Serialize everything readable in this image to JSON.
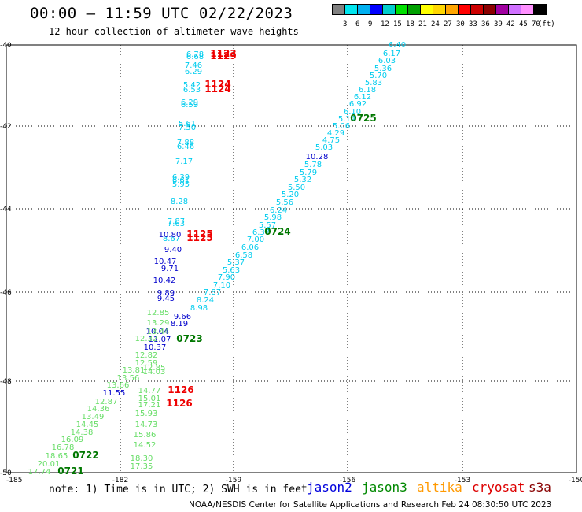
{
  "header": {
    "title": "00:00 – 11:59 UTC 02/22/2023",
    "subtitle": "12 hour collection of altimeter wave heights"
  },
  "colorbar": {
    "colors": [
      "#808080",
      "#00e5ee",
      "#00b0f0",
      "#0000ff",
      "#00cdcd",
      "#00e000",
      "#00a000",
      "#ffff00",
      "#ffd700",
      "#ffa500",
      "#ff0000",
      "#cc0000",
      "#8b0000",
      "#a000a0",
      "#d070ff",
      "#ff90ff",
      "#000000"
    ],
    "labels": [
      "3",
      "6",
      "9",
      "12",
      "15",
      "18",
      "21",
      "24",
      "27",
      "30",
      "33",
      "36",
      "39",
      "42",
      "45",
      "70",
      "(ft)"
    ]
  },
  "axes": {
    "x_ticks": [
      "-185",
      "-182",
      "-159",
      "-156",
      "-153",
      "-150"
    ],
    "y_ticks": [
      "-40",
      "-42",
      "-44",
      "-46",
      "-48",
      "-50"
    ]
  },
  "tracks": [
    {
      "color": "#00ccee",
      "points": [
        [
          "6.40",
          505,
          56
        ],
        [
          "6.17",
          498,
          67
        ],
        [
          "6.03",
          492,
          76
        ],
        [
          "5.36",
          487,
          86
        ],
        [
          "5.70",
          481,
          95
        ],
        [
          "5.83",
          475,
          104
        ],
        [
          "6.18",
          467,
          113
        ],
        [
          "6.12",
          461,
          122
        ],
        [
          "6.92",
          455,
          131
        ],
        [
          "6.10",
          448,
          141
        ],
        [
          "5.14",
          441,
          150
        ],
        [
          "5.06",
          434,
          159
        ],
        [
          "4.29",
          427,
          168
        ],
        [
          "4.75",
          421,
          177
        ],
        [
          "5.03",
          412,
          186
        ],
        [
          "5.78",
          398,
          208
        ],
        [
          "5.79",
          392,
          218
        ],
        [
          "5.32",
          385,
          227
        ],
        [
          "5.50",
          377,
          237
        ],
        [
          "5.20",
          369,
          246
        ],
        [
          "5.56",
          362,
          256
        ],
        [
          "6.24",
          354,
          266
        ],
        [
          "5.98",
          347,
          275
        ],
        [
          "5.57",
          340,
          285
        ],
        [
          "6.37",
          332,
          294
        ],
        [
          "7.00",
          325,
          303
        ],
        [
          "6.06",
          318,
          313
        ],
        [
          "6.58",
          310,
          323
        ],
        [
          "5.37",
          300,
          332
        ],
        [
          "5.63",
          294,
          342
        ],
        [
          "7.90",
          288,
          351
        ],
        [
          "7.10",
          282,
          361
        ],
        [
          "7.87",
          270,
          370
        ],
        [
          "8.24",
          261,
          380
        ],
        [
          "8.98",
          253,
          390
        ],
        [
          "6.78",
          248,
          68
        ],
        [
          "6.68",
          248,
          71
        ],
        [
          "7.46",
          246,
          82
        ],
        [
          "6.29",
          246,
          90
        ],
        [
          "5.42",
          244,
          107
        ],
        [
          "6.53",
          244,
          113
        ],
        [
          "6.29",
          241,
          129
        ],
        [
          "6.59",
          241,
          132
        ],
        [
          "5.61",
          238,
          156
        ],
        [
          "7.50",
          238,
          161
        ],
        [
          "7.88",
          236,
          180
        ],
        [
          "6.46",
          236,
          185
        ],
        [
          "7.17",
          234,
          204
        ],
        [
          "6.39",
          230,
          224
        ],
        [
          "6.61",
          230,
          228
        ],
        [
          "5.95",
          230,
          233
        ],
        [
          "8.28",
          228,
          255
        ],
        [
          "7.87",
          224,
          280
        ],
        [
          "7.63",
          224,
          283
        ],
        [
          "8.67",
          218,
          302
        ]
      ]
    },
    {
      "color": "#0000cc",
      "points": [
        [
          "10.28",
          403,
          198
        ],
        [
          "10.80",
          216,
          297
        ],
        [
          "9.40",
          220,
          316
        ],
        [
          "10.47",
          210,
          331
        ],
        [
          "9.71",
          216,
          340
        ],
        [
          "10.42",
          209,
          355
        ],
        [
          "9.89",
          211,
          371
        ],
        [
          "9.45",
          211,
          378
        ],
        [
          "9.66",
          232,
          401
        ],
        [
          "8.19",
          228,
          410
        ],
        [
          "10.04",
          200,
          420
        ],
        [
          "11.07",
          203,
          430
        ],
        [
          "10.37",
          197,
          440
        ],
        [
          "11.55",
          145,
          498
        ]
      ]
    },
    {
      "color": "#66dd66",
      "points": [
        [
          "12.85",
          201,
          396
        ],
        [
          "13.29",
          201,
          409
        ],
        [
          "13.44",
          201,
          420
        ],
        [
          "12.32",
          186,
          429
        ],
        [
          "12.82",
          186,
          450
        ],
        [
          "12.59",
          186,
          460
        ],
        [
          "13.81",
          170,
          469
        ],
        [
          "12.85",
          196,
          466
        ],
        [
          "14.03",
          196,
          471
        ],
        [
          "13.56",
          163,
          479
        ],
        [
          "13.66",
          150,
          488
        ],
        [
          "12.87",
          135,
          509
        ],
        [
          "14.36",
          125,
          518
        ],
        [
          "13.49",
          118,
          528
        ],
        [
          "14.45",
          111,
          538
        ],
        [
          "14.38",
          104,
          548
        ],
        [
          "16.09",
          92,
          557
        ],
        [
          "16.78",
          80,
          567
        ],
        [
          "18.65",
          72,
          578
        ],
        [
          "20.01",
          62,
          588
        ],
        [
          "17.74",
          50,
          598
        ],
        [
          "14.77",
          190,
          495
        ],
        [
          "15.01",
          190,
          505
        ],
        [
          "17.21",
          190,
          513
        ],
        [
          "15.93",
          186,
          524
        ],
        [
          "14.73",
          186,
          538
        ],
        [
          "15.86",
          184,
          551
        ],
        [
          "14.52",
          184,
          564
        ],
        [
          "18.30",
          180,
          581
        ],
        [
          "17.35",
          180,
          591
        ]
      ]
    },
    {
      "color": "#ee0000",
      "points": [
        [
          "1123",
          284,
          68
        ],
        [
          "1129",
          284,
          71
        ],
        [
          "1124",
          277,
          107
        ],
        [
          "1124",
          277,
          113
        ],
        [
          "1125",
          254,
          297
        ],
        [
          "1125",
          254,
          302
        ],
        [
          "1126",
          230,
          495
        ],
        [
          "1126",
          228,
          512
        ]
      ]
    },
    {
      "color": "#007700",
      "points": [
        [
          "0725",
          462,
          150
        ],
        [
          "0724",
          353,
          294
        ],
        [
          "0723",
          241,
          430
        ],
        [
          "0722",
          109,
          578
        ],
        [
          "0721",
          90,
          598
        ]
      ]
    }
  ],
  "satellites": [
    {
      "name": "jason2",
      "color": "#0000dd"
    },
    {
      "name": "jason3",
      "color": "#008800"
    },
    {
      "name": "altika",
      "color": "#ff9900"
    },
    {
      "name": "cryosat",
      "color": "#dd0000"
    },
    {
      "name": "s3a",
      "color": "#880000"
    }
  ],
  "note": "note: 1) Time is in UTC; 2) SWH is in feet",
  "credit": "NOAA/NESDIS Center for Satellite Applications and Research   Feb 24 08:30:50 UTC 2023"
}
